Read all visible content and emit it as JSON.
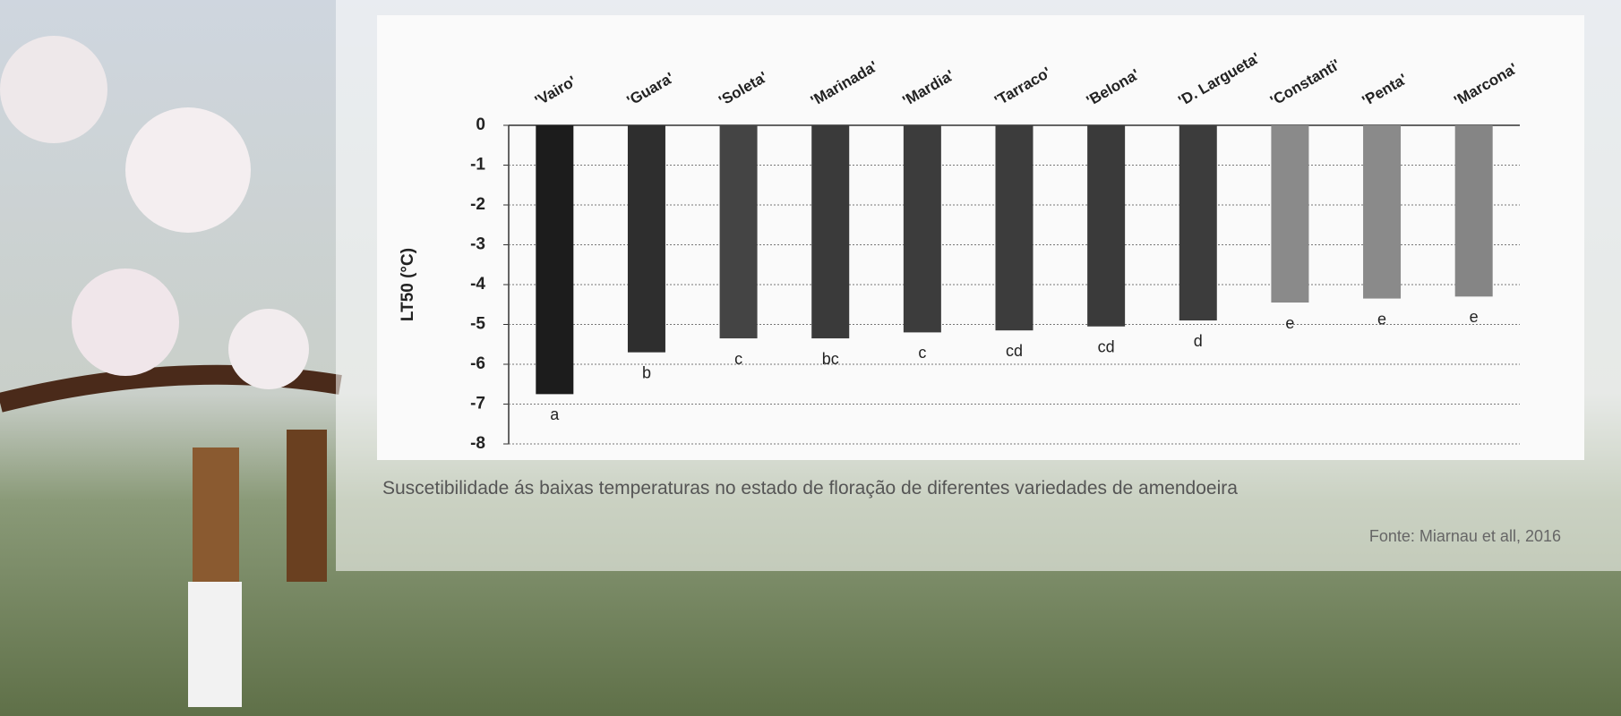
{
  "chart_data": {
    "type": "bar",
    "y_label": "LT50 (°C)",
    "categories": [
      "'Vairo'",
      "'Guara'",
      "'Soleta'",
      "'Marinada'",
      "'Mardia'",
      "'Tarraco'",
      "'Belona'",
      "'D. Largueta'",
      "'Constanti'",
      "'Penta'",
      "'Marcona'"
    ],
    "values": [
      -6.75,
      -5.7,
      -5.35,
      -5.35,
      -5.2,
      -5.15,
      -5.05,
      -4.9,
      -4.45,
      -4.35,
      -4.3
    ],
    "colors": [
      "#1c1c1c",
      "#2e2e2e",
      "#444444",
      "#3a3a3a",
      "#3c3c3c",
      "#3c3c3c",
      "#3a3a3a",
      "#3c3c3c",
      "#8a8a8a",
      "#8a8a8a",
      "#858585"
    ],
    "annotations": [
      "a",
      "b",
      "c",
      "bc",
      "c",
      "cd",
      "cd",
      "d",
      "e",
      "e",
      "e"
    ],
    "ylim": [
      -8,
      0
    ],
    "yticks": [
      0,
      -1,
      -2,
      -3,
      -4,
      -5,
      -6,
      -7,
      -8
    ],
    "grid": true
  },
  "caption": "Suscetibilidade ás baixas temperaturas no estado de floração de diferentes variedades de amendoeira",
  "source": "Fonte: Miarnau et all, 2016"
}
